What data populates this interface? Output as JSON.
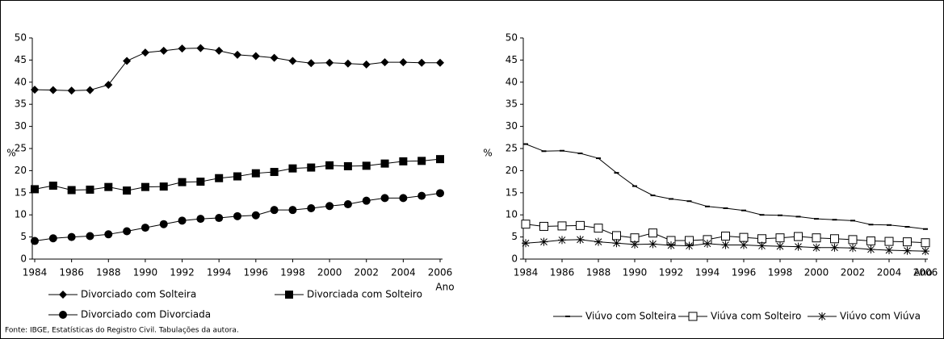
{
  "chart_data": [
    {
      "type": "line",
      "ylabel": "%",
      "xlabel": "Ano",
      "x": [
        1984,
        1985,
        1986,
        1987,
        1988,
        1989,
        1990,
        1991,
        1992,
        1993,
        1994,
        1995,
        1996,
        1997,
        1998,
        1999,
        2000,
        2001,
        2002,
        2003,
        2004,
        2005,
        2006
      ],
      "xlim": [
        1984,
        2006
      ],
      "xticks": [
        1984,
        1986,
        1988,
        1990,
        1992,
        1994,
        1996,
        1998,
        2000,
        2002,
        2004,
        2006
      ],
      "ylim": [
        0,
        50
      ],
      "yticks": [
        0,
        5,
        10,
        15,
        20,
        25,
        30,
        35,
        40,
        45,
        50
      ],
      "series": [
        {
          "name": "Divorciado com Solteira",
          "color": "#000000",
          "marker": "diamond",
          "values": [
            38.3,
            38.2,
            38.1,
            38.2,
            39.4,
            44.8,
            46.7,
            47.1,
            47.6,
            47.7,
            47.1,
            46.2,
            45.9,
            45.5,
            44.8,
            44.3,
            44.4,
            44.2,
            44.0,
            44.5,
            44.5,
            44.4,
            44.4
          ]
        },
        {
          "name": "Divorciada com Solteiro",
          "color": "#000000",
          "marker": "square",
          "values": [
            15.8,
            16.6,
            15.6,
            15.7,
            16.3,
            15.5,
            16.3,
            16.4,
            17.4,
            17.5,
            18.3,
            18.7,
            19.4,
            19.7,
            20.5,
            20.7,
            21.2,
            21.0,
            21.1,
            21.6,
            22.1,
            22.2,
            22.6
          ]
        },
        {
          "name": "Divorciado com Divorciada",
          "color": "#000000",
          "marker": "circle",
          "values": [
            4.1,
            4.7,
            5.0,
            5.2,
            5.6,
            6.3,
            7.1,
            7.9,
            8.7,
            9.1,
            9.3,
            9.7,
            9.9,
            11.1,
            11.1,
            11.5,
            12.0,
            12.4,
            13.2,
            13.8,
            13.8,
            14.3,
            14.9
          ]
        }
      ]
    },
    {
      "type": "line",
      "ylabel": "%",
      "xlabel": "Ano",
      "x": [
        1984,
        1985,
        1986,
        1987,
        1988,
        1989,
        1990,
        1991,
        1992,
        1993,
        1994,
        1995,
        1996,
        1997,
        1998,
        1999,
        2000,
        2001,
        2002,
        2003,
        2004,
        2005,
        2006
      ],
      "xlim": [
        1984,
        2006
      ],
      "xticks": [
        1984,
        1986,
        1988,
        1990,
        1992,
        1994,
        1996,
        1998,
        2000,
        2002,
        2004,
        2006
      ],
      "ylim": [
        0,
        50
      ],
      "yticks": [
        0,
        5,
        10,
        15,
        20,
        25,
        30,
        35,
        40,
        45,
        50
      ],
      "series": [
        {
          "name": "Viúvo com Solteira",
          "color": "#000000",
          "marker": "dash",
          "values": [
            26.0,
            24.4,
            24.5,
            23.9,
            22.8,
            19.5,
            16.5,
            14.4,
            13.6,
            13.1,
            11.9,
            11.5,
            11.0,
            10.0,
            9.9,
            9.6,
            9.1,
            8.9,
            8.7,
            7.8,
            7.7,
            7.3,
            6.8
          ]
        },
        {
          "name": "Viúva com Solteiro",
          "color": "#000000",
          "marker": "square-open",
          "values": [
            7.9,
            7.4,
            7.5,
            7.6,
            7.0,
            5.3,
            4.8,
            5.9,
            4.2,
            4.2,
            4.4,
            5.2,
            4.9,
            4.6,
            4.8,
            5.1,
            4.8,
            4.6,
            4.4,
            4.1,
            4.0,
            3.9,
            3.7
          ]
        },
        {
          "name": "Viúvo com Viúva",
          "color": "#000000",
          "marker": "asterisk",
          "values": [
            3.6,
            3.9,
            4.3,
            4.4,
            3.9,
            3.6,
            3.3,
            3.4,
            3.1,
            3.0,
            3.5,
            3.2,
            3.2,
            3.0,
            2.9,
            2.8,
            2.6,
            2.6,
            2.5,
            2.2,
            2.0,
            1.9,
            1.8
          ]
        }
      ]
    }
  ],
  "source": "Fonte: IBGE, Estatísticas do Registro Civil. Tabulações da autora."
}
